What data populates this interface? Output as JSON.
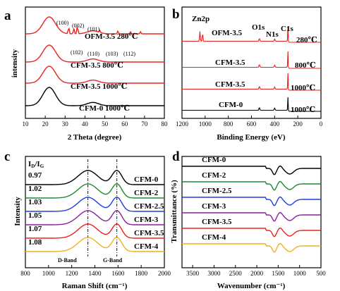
{
  "chart_data": [
    {
      "panel": "a",
      "type": "line",
      "xlabel": "2 Theta (degree)",
      "ylabel": "intensity",
      "xlim": [
        10,
        80
      ],
      "xticks": [
        "10",
        "20",
        "30",
        "40",
        "50",
        "60",
        "70",
        "80"
      ],
      "series": [
        {
          "label": "CFM-0  1000℃",
          "color": "#000000"
        },
        {
          "label": "CFM-3.5  1000℃",
          "color": "#e8231f"
        },
        {
          "label": "CFM-3.5  800℃",
          "color": "#e8231f"
        },
        {
          "label": "OFM-3.5  280℃",
          "color": "#e8231f"
        }
      ],
      "peak_labels_top": [
        "(100)",
        "(002)",
        "(101)"
      ],
      "peak_labels_bottom": [
        "(102)",
        "(110)",
        "(103)",
        "(112)"
      ]
    },
    {
      "panel": "b",
      "type": "line",
      "xlabel": "Binding Energy (eV)",
      "xlim": [
        1200,
        0
      ],
      "xticks": [
        "1200",
        "1000",
        "800",
        "600",
        "400",
        "200",
        "0"
      ],
      "series": [
        {
          "label": "CFM-0",
          "temp": "1000℃",
          "color": "#000000"
        },
        {
          "label": "CFM-3.5",
          "temp": "1000℃",
          "color": "#e8231f"
        },
        {
          "label": "CFM-3.5",
          "temp": "800℃",
          "color": "#e8231f"
        },
        {
          "label": "OFM-3.5",
          "temp": "280℃",
          "color": "#e8231f"
        }
      ],
      "peak_labels": [
        "Zn2p",
        "O1s",
        "N1s",
        "C1s"
      ]
    },
    {
      "panel": "c",
      "type": "line",
      "xlabel": "Raman Shift (cm⁻¹)",
      "ylabel": "Intensity",
      "xlim": [
        800,
        2000
      ],
      "xticks": [
        "800",
        "1000",
        "1200",
        "1400",
        "1600",
        "1800",
        "2000"
      ],
      "ratio_header": "ID/IG",
      "ratios": [
        "0.97",
        "1.02",
        "1.03",
        "1.05",
        "1.07",
        "1.08"
      ],
      "series": [
        {
          "label": "CFM-0",
          "color": "#000000"
        },
        {
          "label": "CFM-2",
          "color": "#1a8c2e"
        },
        {
          "label": "CFM-2.5",
          "color": "#1f3fe0"
        },
        {
          "label": "CFM-3",
          "color": "#8b1f9c"
        },
        {
          "label": "CFM-3.5",
          "color": "#e8231f"
        },
        {
          "label": "CFM-4",
          "color": "#f2b21c"
        }
      ],
      "band_labels": [
        "D-Band",
        "G-Band"
      ],
      "band_positions": [
        1340,
        1590
      ]
    },
    {
      "panel": "d",
      "type": "line",
      "xlabel": "Wavenumber (cm⁻¹)",
      "ylabel": "Transmittance (%)",
      "xlim": [
        3750,
        500
      ],
      "xticks": [
        "3500",
        "3000",
        "2500",
        "2000",
        "1500",
        "1000",
        "500"
      ],
      "series": [
        {
          "label": "CFM-0",
          "color": "#000000"
        },
        {
          "label": "CFM-2",
          "color": "#1a8c2e"
        },
        {
          "label": "CFM-2.5",
          "color": "#1f3fe0"
        },
        {
          "label": "CFM-3",
          "color": "#8b1f9c"
        },
        {
          "label": "CFM-3.5",
          "color": "#e8231f"
        },
        {
          "label": "CFM-4",
          "color": "#f2b21c"
        }
      ]
    }
  ]
}
